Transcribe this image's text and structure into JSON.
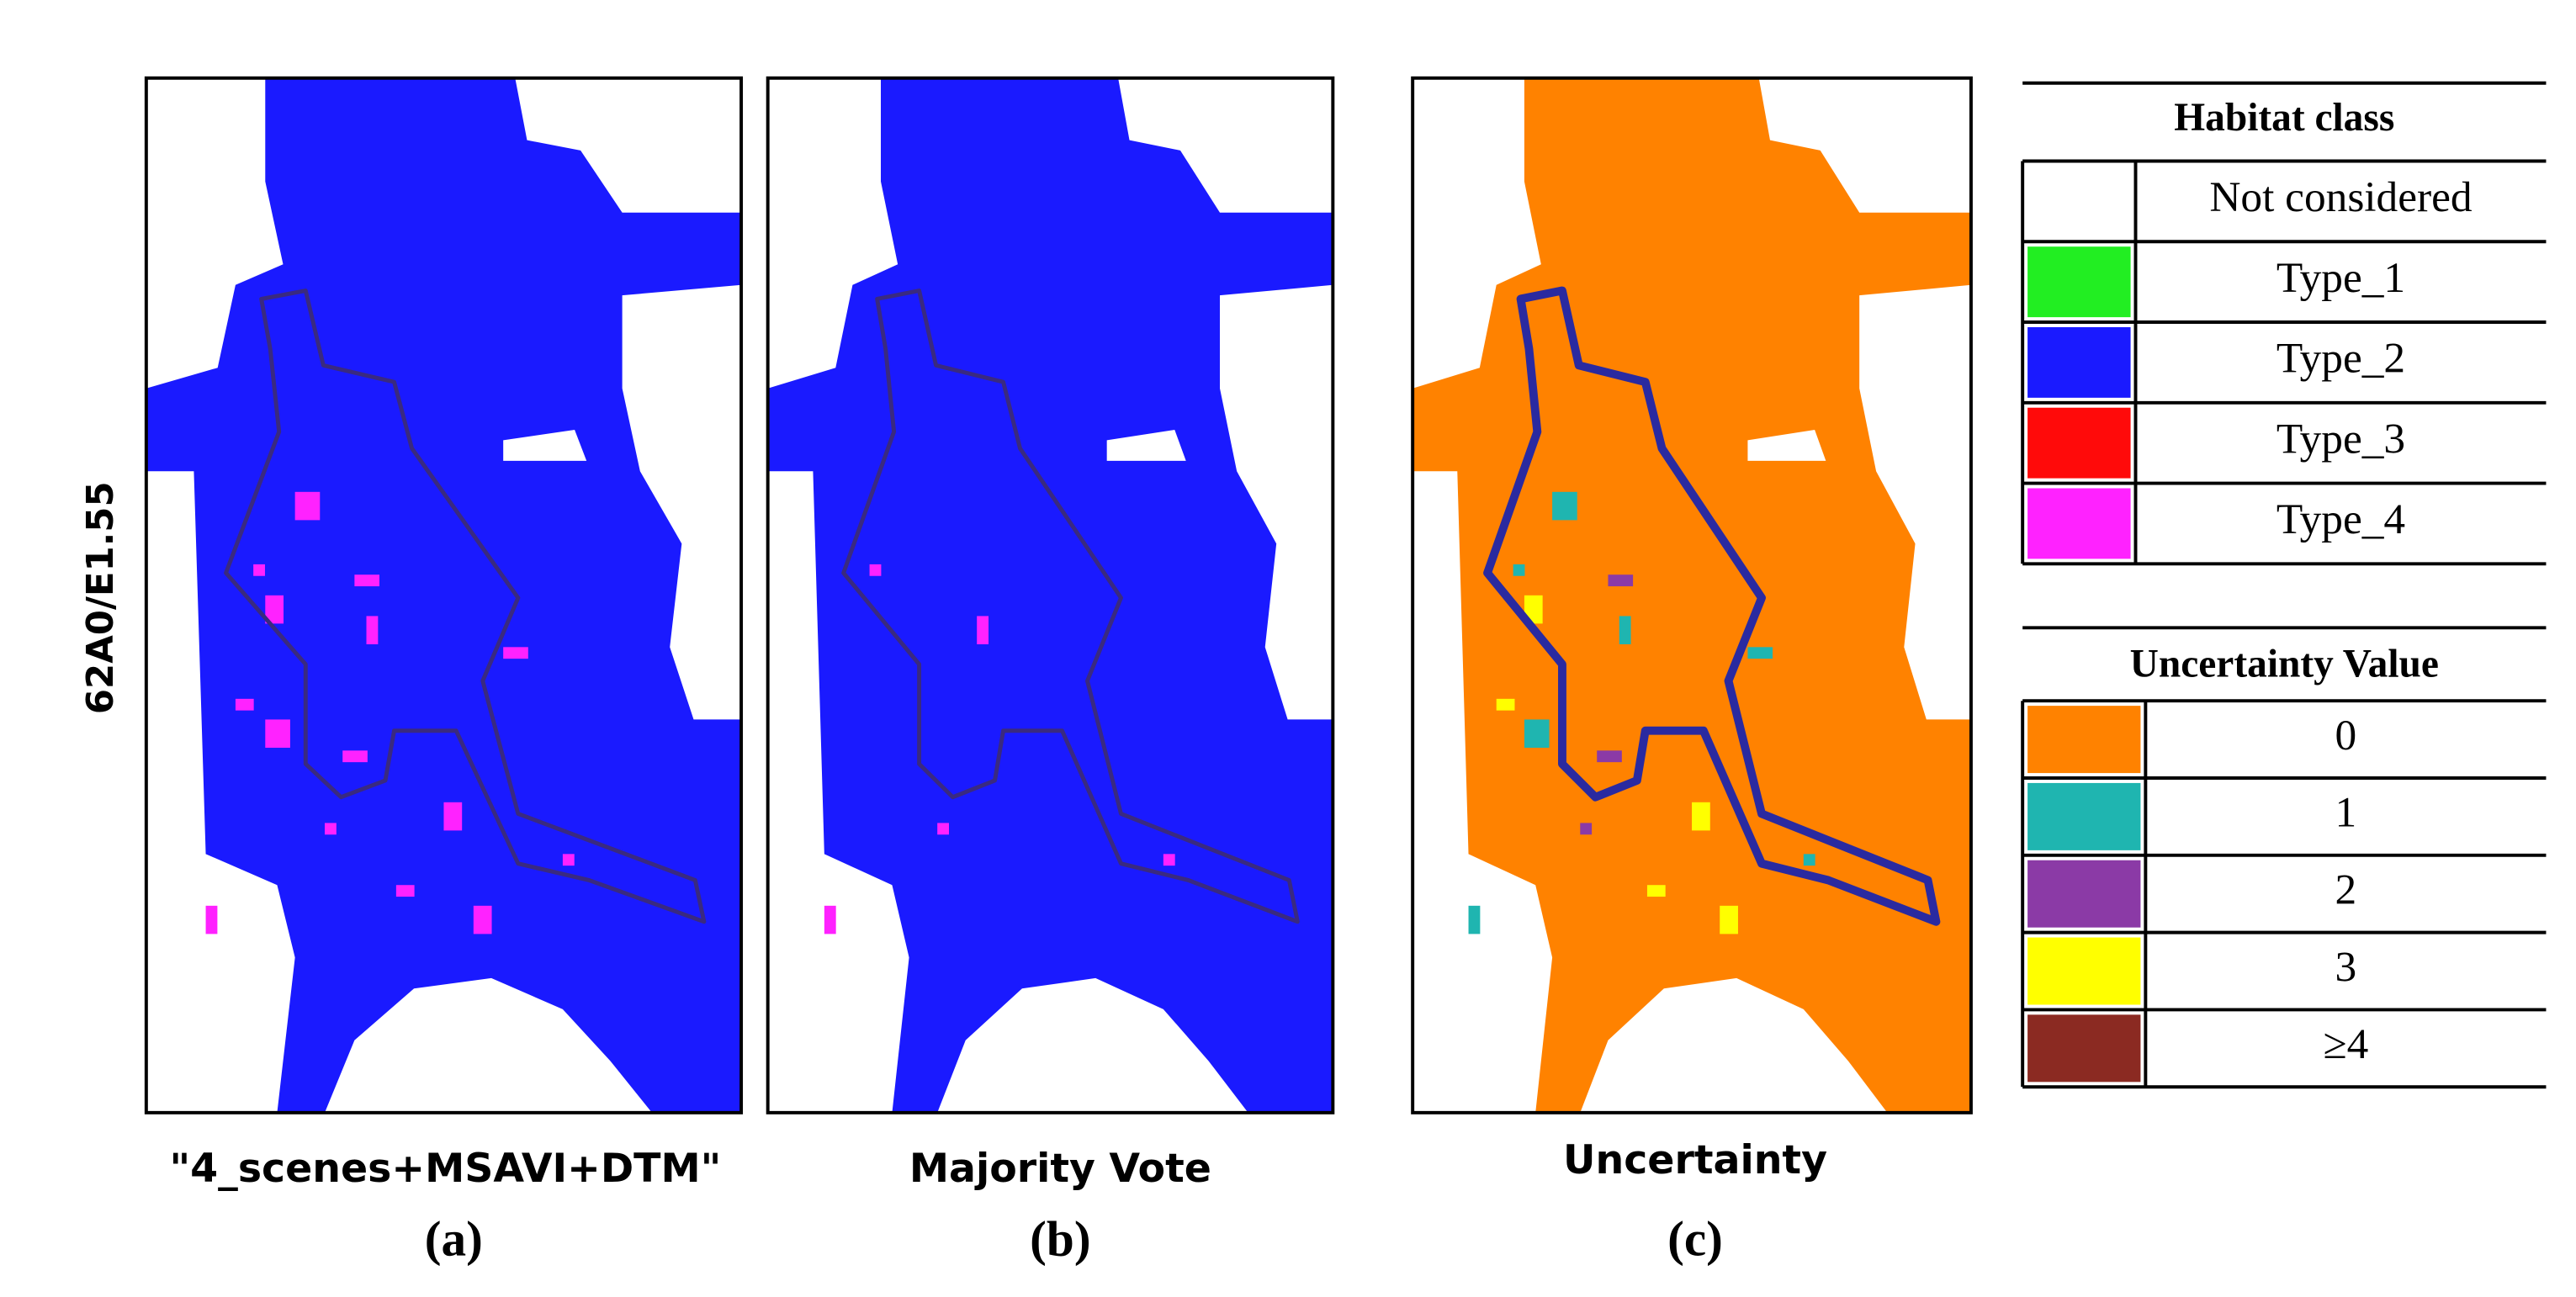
{
  "y_label": "62A0/E1.55",
  "panels": [
    {
      "caption": "\"4_scenes+MSAVI+DTM\"",
      "label": "(a)"
    },
    {
      "caption": "Majority Vote",
      "label": "(b)"
    },
    {
      "caption": "Uncertainty",
      "label": "(c)"
    }
  ],
  "legends": [
    {
      "title": "Habitat class",
      "items": [
        {
          "label": "Not considered",
          "color": "#ffffff"
        },
        {
          "label": "Type_1",
          "color": "#22ee22"
        },
        {
          "label": "Type_2",
          "color": "#1a1aff"
        },
        {
          "label": "Type_3",
          "color": "#ff0a0a"
        },
        {
          "label": "Type_4",
          "color": "#ff22ff"
        }
      ]
    },
    {
      "title": "Uncertainty Value",
      "items": [
        {
          "label": "0",
          "color": "#ff8200"
        },
        {
          "label": "1",
          "color": "#1fb5b0"
        },
        {
          "label": "2",
          "color": "#8b3aa6"
        },
        {
          "label": "3",
          "color": "#ffff00"
        },
        {
          "label": "≥4",
          "color": "#8b2a22"
        }
      ]
    }
  ]
}
